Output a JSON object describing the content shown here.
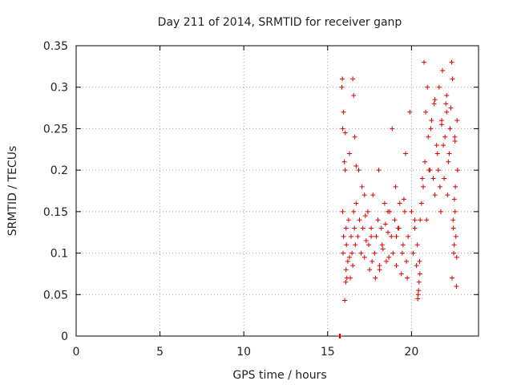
{
  "chart_data": {
    "type": "scatter",
    "title": "Day 211 of 2014, SRMTID for receiver ganp",
    "xlabel": "GPS time / hours",
    "ylabel": "SRMTID / TECUs",
    "xlim": [
      0,
      24
    ],
    "ylim": [
      0,
      0.35
    ],
    "xticks": [
      0,
      5,
      10,
      15,
      20
    ],
    "xtick_labels": [
      "0",
      "5",
      "10",
      "15",
      "20"
    ],
    "yticks": [
      0,
      0.05,
      0.1,
      0.15,
      0.2,
      0.25,
      0.3,
      0.35
    ],
    "ytick_labels": [
      "0",
      "0.05",
      "0.1",
      "0.15",
      "0.2",
      "0.25",
      "0.3",
      "0.35"
    ],
    "grid": true,
    "marker": "+",
    "color": "#dd0000",
    "series": [
      {
        "name": "SRMTID",
        "x": [
          15.7,
          15.72,
          15.74,
          15.76,
          15.85,
          15.88,
          15.9,
          15.95,
          16.0,
          16.05,
          15.9,
          15.95,
          16.1,
          15.92,
          16.08,
          16.15,
          16.2,
          16.02,
          16.1,
          16.12,
          16.25,
          16.3,
          16.35,
          16.4,
          16.45,
          16.5,
          16.55,
          16.6,
          16.65,
          16.7,
          16.5,
          16.55,
          16.62,
          16.8,
          16.9,
          17.0,
          17.1,
          17.2,
          17.3,
          17.4,
          17.5,
          17.6,
          17.7,
          16.85,
          17.05,
          17.25,
          17.45,
          17.65,
          17.8,
          17.9,
          18.0,
          18.1,
          18.2,
          18.3,
          18.4,
          18.5,
          18.6,
          18.7,
          17.85,
          18.05,
          18.25,
          18.45,
          18.65,
          18.8,
          18.9,
          19.0,
          19.1,
          19.2,
          19.3,
          19.4,
          19.5,
          19.6,
          19.7,
          18.85,
          19.05,
          19.25,
          19.45,
          19.65,
          19.75,
          19.8,
          19.9,
          20.0,
          20.1,
          20.2,
          20.3,
          20.4,
          20.45,
          20.5,
          20.35,
          20.42,
          20.38,
          20.48,
          20.52,
          20.6,
          20.7,
          20.8,
          20.9,
          21.0,
          21.1,
          21.2,
          21.3,
          21.4,
          21.5,
          20.75,
          20.95,
          21.15,
          21.35,
          21.55,
          21.6,
          21.7,
          21.8,
          21.9,
          22.0,
          22.1,
          22.2,
          22.3,
          21.65,
          21.85,
          22.05,
          22.25,
          21.75,
          21.95,
          22.15,
          22.4,
          22.45,
          22.5,
          22.55,
          22.6,
          22.65,
          22.7,
          22.42,
          22.48,
          22.58,
          22.62,
          22.68,
          22.52,
          22.56,
          22.72,
          16.05,
          16.3,
          16.7,
          17.2,
          17.6,
          18.1,
          18.6,
          19.1,
          19.55,
          20.2,
          20.65,
          20.85,
          21.05,
          21.4,
          21.8,
          22.1,
          22.35,
          22.6,
          22.75
        ],
        "y": [
          0.0,
          0.0,
          0.0,
          0.0,
          0.3,
          0.31,
          0.25,
          0.27,
          0.21,
          0.2,
          0.15,
          0.12,
          0.08,
          0.1,
          0.065,
          0.07,
          0.09,
          0.043,
          0.13,
          0.11,
          0.14,
          0.095,
          0.07,
          0.12,
          0.1,
          0.085,
          0.15,
          0.13,
          0.11,
          0.16,
          0.31,
          0.29,
          0.24,
          0.12,
          0.14,
          0.1,
          0.13,
          0.095,
          0.115,
          0.15,
          0.08,
          0.12,
          0.17,
          0.2,
          0.18,
          0.145,
          0.11,
          0.09,
          0.1,
          0.12,
          0.14,
          0.085,
          0.13,
          0.105,
          0.16,
          0.09,
          0.125,
          0.15,
          0.07,
          0.2,
          0.11,
          0.135,
          0.095,
          0.12,
          0.1,
          0.14,
          0.085,
          0.13,
          0.16,
          0.075,
          0.11,
          0.15,
          0.09,
          0.25,
          0.18,
          0.13,
          0.1,
          0.22,
          0.07,
          0.12,
          0.27,
          0.15,
          0.1,
          0.13,
          0.085,
          0.05,
          0.065,
          0.075,
          0.11,
          0.055,
          0.045,
          0.09,
          0.14,
          0.16,
          0.18,
          0.21,
          0.14,
          0.24,
          0.2,
          0.26,
          0.19,
          0.17,
          0.23,
          0.33,
          0.3,
          0.25,
          0.28,
          0.22,
          0.2,
          0.18,
          0.26,
          0.23,
          0.24,
          0.27,
          0.21,
          0.25,
          0.3,
          0.32,
          0.28,
          0.22,
          0.15,
          0.19,
          0.17,
          0.33,
          0.31,
          0.13,
          0.11,
          0.15,
          0.12,
          0.095,
          0.07,
          0.14,
          0.24,
          0.18,
          0.06,
          0.1,
          0.165,
          0.26,
          0.245,
          0.22,
          0.205,
          0.17,
          0.13,
          0.08,
          0.15,
          0.12,
          0.165,
          0.14,
          0.19,
          0.27,
          0.2,
          0.285,
          0.255,
          0.29,
          0.275,
          0.235,
          0.2
        ]
      }
    ]
  }
}
